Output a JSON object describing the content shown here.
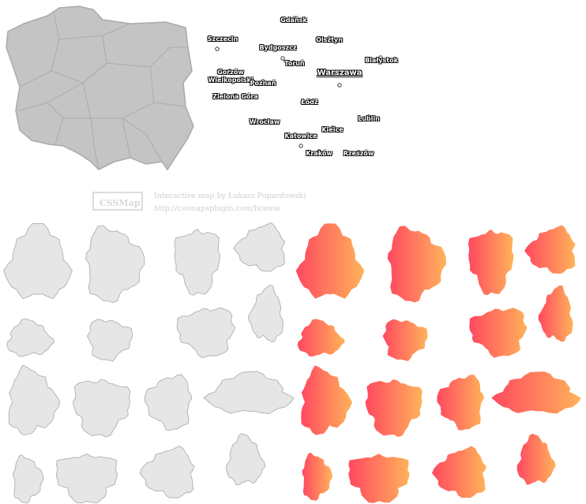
{
  "cities": [
    {
      "name": "Gdańsk"
    },
    {
      "name": "Szczecin"
    },
    {
      "name": "Olsztyn"
    },
    {
      "name": "Bydgoszcz"
    },
    {
      "name": "Białystok"
    },
    {
      "name": "Toruń"
    },
    {
      "name": "Gorzów Wielkopolski"
    },
    {
      "name": "Warszawa"
    },
    {
      "name": "Poznań"
    },
    {
      "name": "Zielona Góra"
    },
    {
      "name": "Łódź"
    },
    {
      "name": "Lublin"
    },
    {
      "name": "Wrocław"
    },
    {
      "name": "Kielce"
    },
    {
      "name": "Katowice"
    },
    {
      "name": "Kraków"
    },
    {
      "name": "Rzeszów"
    }
  ],
  "credits": {
    "logo": "CSSMap",
    "author": "Interactive map by Łukasz Popardowski",
    "url": "http://cssmapsplugin.com/license"
  }
}
